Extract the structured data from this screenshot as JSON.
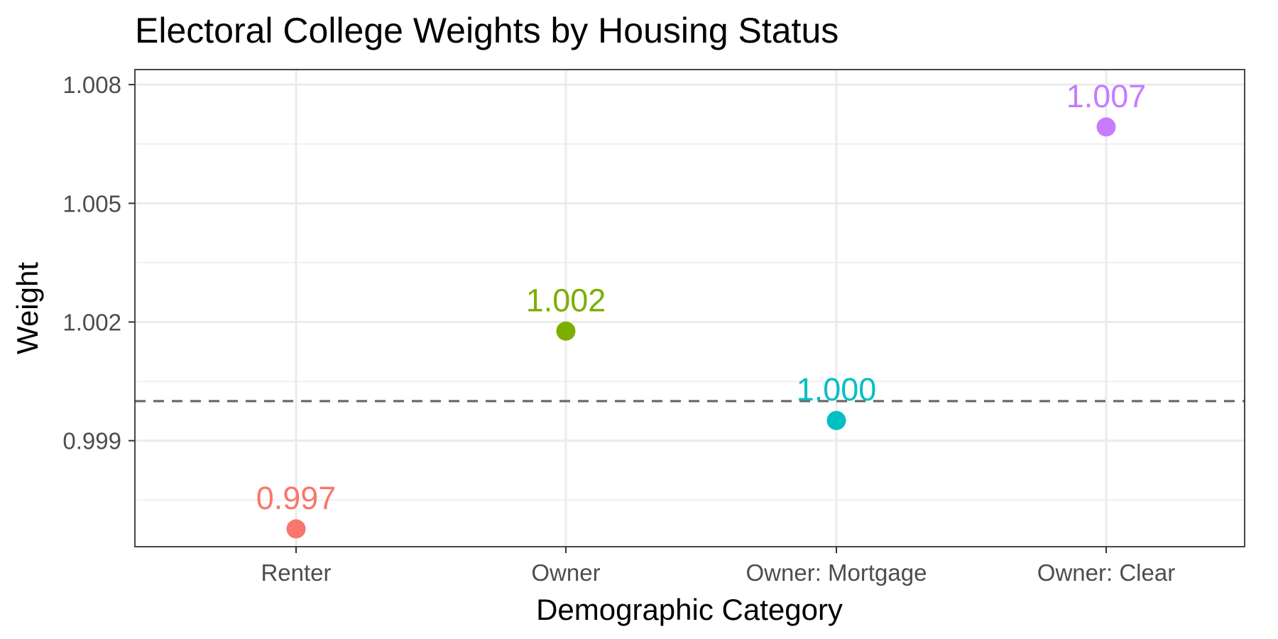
{
  "chart_data": {
    "type": "scatter",
    "title": "Electoral College Weights by Housing Status",
    "xlabel": "Demographic Category",
    "ylabel": "Weight",
    "categories": [
      "Renter",
      "Owner",
      "Owner: Mortgage",
      "Owner: Clear"
    ],
    "values": [
      0.99677,
      1.00177,
      0.99951,
      1.00693
    ],
    "labels": [
      "0.997",
      "1.002",
      "1.000",
      "1.007"
    ],
    "colors": [
      "#F8766D",
      "#7CAE00",
      "#00BFC4",
      "#C77CFF"
    ],
    "yticks": [
      0.999,
      1.002,
      1.005,
      1.008
    ],
    "ytick_labels": [
      "0.999",
      "1.002",
      "1.005",
      "1.008"
    ],
    "ylim": [
      0.99632,
      1.00838
    ],
    "reference_line": {
      "y": 1.0,
      "style": "dashed",
      "color": "#666666"
    },
    "grid": true,
    "legend": "none",
    "theme": "bw"
  }
}
